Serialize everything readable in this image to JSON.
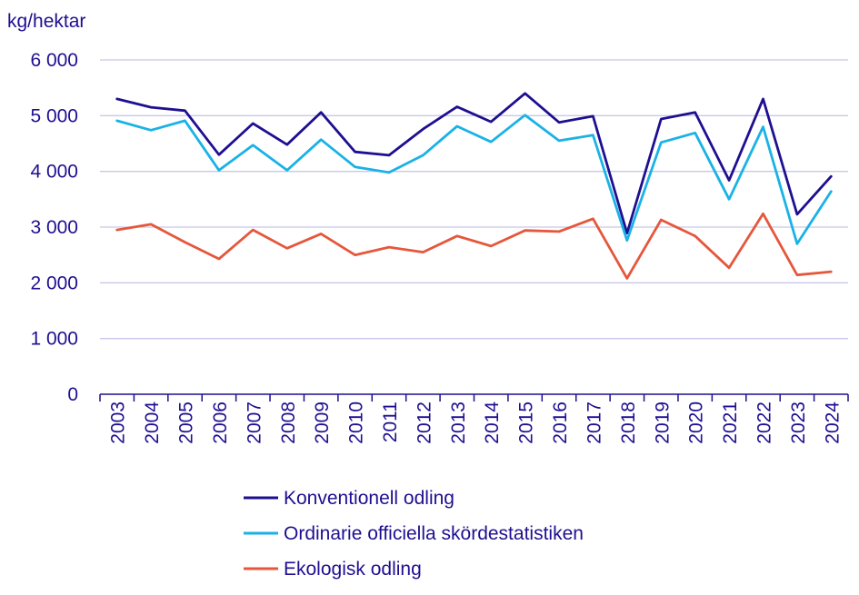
{
  "chart_data": {
    "type": "line",
    "title": "",
    "ylabel": "kg/hektar",
    "xlabel": "",
    "ylim": [
      0,
      6000
    ],
    "yticks": [
      0,
      1000,
      2000,
      3000,
      4000,
      5000,
      6000
    ],
    "ytick_labels": [
      "0",
      "1 000",
      "2 000",
      "3 000",
      "4 000",
      "5 000",
      "6 000"
    ],
    "grid": true,
    "legend_position": "bottom",
    "categories": [
      "2003",
      "2004",
      "2005",
      "2006",
      "2007",
      "2008",
      "2009",
      "2010",
      "2011",
      "2012",
      "2013",
      "2014",
      "2015",
      "2016",
      "2017",
      "2018",
      "2019",
      "2020",
      "2021",
      "2022",
      "2023",
      "2024"
    ],
    "series": [
      {
        "name": "Konventionell odling",
        "color": "#1e0f91",
        "values": [
          5300,
          5150,
          5090,
          4300,
          4860,
          4480,
          5060,
          4350,
          4290,
          4760,
          5160,
          4890,
          5400,
          4880,
          4990,
          2890,
          4940,
          5060,
          3840,
          5300,
          3230,
          3910
        ]
      },
      {
        "name": "Ordinarie officiella skördestatistiken",
        "color": "#1ab2e6",
        "values": [
          4910,
          4740,
          4910,
          4020,
          4470,
          4020,
          4570,
          4080,
          3980,
          4290,
          4810,
          4530,
          5010,
          4550,
          4650,
          2760,
          4520,
          4690,
          3500,
          4800,
          2700,
          3640
        ]
      },
      {
        "name": "Ekologisk odling",
        "color": "#e5573c",
        "values": [
          2950,
          3050,
          2730,
          2430,
          2950,
          2620,
          2880,
          2500,
          2640,
          2550,
          2840,
          2660,
          2940,
          2920,
          3150,
          2080,
          3130,
          2840,
          2270,
          3240,
          2140,
          2200
        ]
      }
    ]
  }
}
